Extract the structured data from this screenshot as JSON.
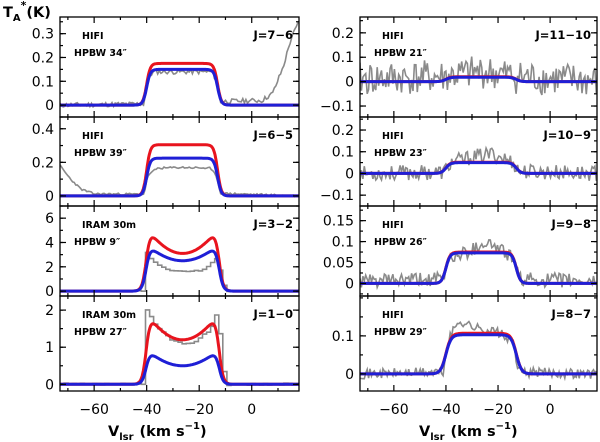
{
  "figure": {
    "y_title": "T",
    "y_title_sub": "A",
    "y_title_sup": "*",
    "y_title_unit": "(K)",
    "x_title_left": "V",
    "x_title_left_sub": "lsr",
    "x_title_left_unit": "(km s",
    "x_title_left_sup": "−1",
    "x_title_left_close": ")",
    "x_title_right": "V",
    "x_title_right_sub": "lsr",
    "x_title_right_unit": "(km s",
    "x_title_right_sup": "−1",
    "x_title_right_close": ")"
  },
  "colors": {
    "observed": "#8a8a8a",
    "model_red": "#e8141e",
    "model_blue": "#1f1fd6",
    "frame": "#000000"
  },
  "chart_data": [
    {
      "type": "line",
      "column": "left",
      "row": 0,
      "telescope": "HIFI",
      "beam": "HPBW 34″",
      "transition": "J=7−6",
      "xlim": [
        -73,
        18
      ],
      "ylim": [
        -0.05,
        0.37
      ],
      "x_ticks": [
        -60,
        -40,
        -20,
        0
      ],
      "y_ticks": [
        0,
        0.1,
        0.2,
        0.3
      ],
      "y_tick_labels": [
        "0",
        "0.1",
        "0.2",
        "0.3"
      ],
      "series": [
        {
          "kind": "model",
          "color": "red",
          "vexp": 13.5,
          "vsys": -26.5,
          "width": 0.7,
          "peak": 0.175,
          "horn": 0,
          "base": 0
        },
        {
          "kind": "model",
          "color": "blue",
          "vexp": 13.5,
          "vsys": -26.5,
          "width": 0.7,
          "peak": 0.15,
          "horn": 0,
          "base": 0
        },
        {
          "kind": "observed",
          "x_step": 0.6,
          "noise": 0.01,
          "seed": 11,
          "profile": [
            [
              -73,
              0
            ],
            [
              -41,
              0.005
            ],
            [
              -39.6,
              0.12
            ],
            [
              -37,
              0.14
            ],
            [
              -30,
              0.14
            ],
            [
              -20,
              0.14
            ],
            [
              -15,
              0.14
            ],
            [
              -13.4,
              0.1
            ],
            [
              -12,
              0.015
            ],
            [
              4,
              0.02
            ],
            [
              8,
              0.05
            ],
            [
              12,
              0.16
            ],
            [
              15,
              0.28
            ],
            [
              18,
              0.35
            ]
          ]
        }
      ]
    },
    {
      "type": "line",
      "column": "left",
      "row": 1,
      "telescope": "HIFI",
      "beam": "HPBW 39″",
      "transition": "J=6−5",
      "xlim": [
        -73,
        18
      ],
      "ylim": [
        -0.06,
        0.47
      ],
      "x_ticks": [
        -60,
        -40,
        -20,
        0
      ],
      "y_ticks": [
        0,
        0.2,
        0.4
      ],
      "y_tick_labels": [
        "0",
        "0.2",
        "0.4"
      ],
      "series": [
        {
          "kind": "model",
          "color": "red",
          "vexp": 13.5,
          "vsys": -26.5,
          "width": 0.7,
          "peak": 0.305,
          "horn": 0,
          "base": 0
        },
        {
          "kind": "model",
          "color": "blue",
          "vexp": 13.5,
          "vsys": -26.5,
          "width": 0.7,
          "peak": 0.225,
          "horn": 0,
          "base": 0
        },
        {
          "kind": "observed",
          "x_step": 0.6,
          "noise": 0.006,
          "seed": 23,
          "profile": [
            [
              -73,
              0.18
            ],
            [
              -69,
              0.1
            ],
            [
              -65,
              0.04
            ],
            [
              -60,
              0.012
            ],
            [
              -41,
              0.01
            ],
            [
              -39.6,
              0.12
            ],
            [
              -36,
              0.165
            ],
            [
              -26,
              0.17
            ],
            [
              -16,
              0.165
            ],
            [
              -13.4,
              0.12
            ],
            [
              -12,
              0.015
            ],
            [
              18,
              0.0
            ]
          ]
        }
      ]
    },
    {
      "type": "line",
      "column": "left",
      "row": 2,
      "telescope": "IRAM 30m",
      "beam": "HPBW 9″",
      "transition": "J=3−2",
      "xlim": [
        -73,
        18
      ],
      "ylim": [
        -0.4,
        7.0
      ],
      "x_ticks": [
        -60,
        -40,
        -20,
        0
      ],
      "y_ticks": [
        0,
        2,
        4,
        6
      ],
      "y_tick_labels": [
        "0",
        "2",
        "4",
        "6"
      ],
      "series": [
        {
          "kind": "model",
          "color": "red",
          "vexp": 13.8,
          "vsys": -26.3,
          "width": 0.8,
          "peak": 5.3,
          "horn": 2.2,
          "base": 0
        },
        {
          "kind": "model",
          "color": "blue",
          "vexp": 13.8,
          "vsys": -26.3,
          "width": 0.8,
          "peak": 3.9,
          "horn": 1.4,
          "base": 0
        },
        {
          "kind": "histogram",
          "x_step": 1.55,
          "noise": 0.05,
          "seed": 31,
          "profile": [
            [
              -73,
              0
            ],
            [
              -41.5,
              0
            ],
            [
              -40.5,
              3.2
            ],
            [
              -38.5,
              2.6
            ],
            [
              -33,
              1.75
            ],
            [
              -26,
              1.6
            ],
            [
              -19,
              1.7
            ],
            [
              -14,
              2.7
            ],
            [
              -12,
              1.3
            ],
            [
              -10.5,
              0
            ],
            [
              18,
              0
            ]
          ]
        }
      ]
    },
    {
      "type": "line",
      "column": "left",
      "row": 3,
      "telescope": "IRAM 30m",
      "beam": "HPBW 27″",
      "transition": "J=1−0",
      "xlim": [
        -73,
        18
      ],
      "ylim": [
        -0.18,
        2.38
      ],
      "x_ticks": [
        -60,
        -40,
        -20,
        0
      ],
      "y_ticks": [
        0,
        1,
        2
      ],
      "y_tick_labels": [
        "0",
        "1",
        "2"
      ],
      "series": [
        {
          "kind": "model",
          "color": "red",
          "vexp": 13.8,
          "vsys": -26.3,
          "width": 0.8,
          "peak": 1.95,
          "horn": 0.75,
          "base": 0
        },
        {
          "kind": "model",
          "color": "blue",
          "vexp": 13.8,
          "vsys": -26.3,
          "width": 0.8,
          "peak": 0.95,
          "horn": 0.45,
          "base": 0
        },
        {
          "kind": "histogram",
          "x_step": 1.55,
          "noise": 0.03,
          "seed": 37,
          "profile": [
            [
              -73,
              0
            ],
            [
              -41.5,
              0
            ],
            [
              -40.5,
              2.0
            ],
            [
              -36,
              1.5
            ],
            [
              -31,
              1.2
            ],
            [
              -26,
              1.05
            ],
            [
              -21,
              1.2
            ],
            [
              -16,
              1.5
            ],
            [
              -13.5,
              2.0
            ],
            [
              -12,
              1.0
            ],
            [
              -10.5,
              0
            ],
            [
              18,
              0
            ]
          ]
        }
      ]
    },
    {
      "type": "line",
      "column": "right",
      "row": 0,
      "telescope": "HIFI",
      "beam": "HPBW 21″",
      "transition": "J=11−10",
      "xlim": [
        -73,
        18
      ],
      "ylim": [
        -0.145,
        0.265
      ],
      "x_ticks": [
        -60,
        -40,
        -20,
        0
      ],
      "y_ticks": [
        -0.1,
        0,
        0.1,
        0.2
      ],
      "y_tick_labels": [
        "−0.1",
        "0",
        "0.1",
        "0.2"
      ],
      "series": [
        {
          "kind": "model",
          "color": "red",
          "vexp": 13.5,
          "vsys": -26.5,
          "width": 0.9,
          "peak": 0.02,
          "horn": 0,
          "base": 0
        },
        {
          "kind": "model",
          "color": "blue",
          "vexp": 13.5,
          "vsys": -26.5,
          "width": 0.9,
          "peak": 0.018,
          "horn": 0,
          "base": 0
        },
        {
          "kind": "observed",
          "x_step": 0.55,
          "noise": 0.07,
          "seed": 41,
          "profile": [
            [
              -73,
              0.01
            ],
            [
              -40,
              0.02
            ],
            [
              -26,
              0.04
            ],
            [
              -13,
              0.02
            ],
            [
              18,
              0
            ]
          ]
        }
      ]
    },
    {
      "type": "line",
      "column": "right",
      "row": 1,
      "telescope": "HIFI",
      "beam": "HPBW 23″",
      "transition": "J=10−9",
      "xlim": [
        -73,
        18
      ],
      "ylim": [
        -0.15,
        0.26
      ],
      "x_ticks": [
        -60,
        -40,
        -20,
        0
      ],
      "y_ticks": [
        -0.1,
        0,
        0.1,
        0.2
      ],
      "y_tick_labels": [
        "−0.1",
        "0",
        "0.1",
        "0.2"
      ],
      "series": [
        {
          "kind": "model",
          "color": "red",
          "vexp": 13.5,
          "vsys": -26.5,
          "width": 0.9,
          "peak": 0.052,
          "horn": 0,
          "base": 0
        },
        {
          "kind": "model",
          "color": "blue",
          "vexp": 13.5,
          "vsys": -26.5,
          "width": 0.9,
          "peak": 0.05,
          "horn": 0,
          "base": 0
        },
        {
          "kind": "observed",
          "x_step": 0.55,
          "noise": 0.035,
          "seed": 53,
          "profile": [
            [
              -73,
              0
            ],
            [
              -41,
              0.005
            ],
            [
              -38,
              0.05
            ],
            [
              -30,
              0.075
            ],
            [
              -22,
              0.09
            ],
            [
              -14,
              0.05
            ],
            [
              -12,
              0.01
            ],
            [
              18,
              0
            ]
          ]
        }
      ]
    },
    {
      "type": "line",
      "column": "right",
      "row": 2,
      "telescope": "HIFI",
      "beam": "HPBW 26″",
      "transition": "J=9−8",
      "xlim": [
        -73,
        18
      ],
      "ylim": [
        -0.03,
        0.185
      ],
      "x_ticks": [
        -60,
        -40,
        -20,
        0
      ],
      "y_ticks": [
        0,
        0.05,
        0.1,
        0.15
      ],
      "y_tick_labels": [
        "0",
        "0.05",
        "0.1",
        "0.15"
      ],
      "series": [
        {
          "kind": "model",
          "color": "red",
          "vexp": 13.5,
          "vsys": -26.5,
          "width": 0.8,
          "peak": 0.075,
          "horn": 0,
          "base": 0
        },
        {
          "kind": "model",
          "color": "blue",
          "vexp": 13.5,
          "vsys": -26.5,
          "width": 0.8,
          "peak": 0.073,
          "horn": 0,
          "base": 0
        },
        {
          "kind": "observed",
          "x_step": 0.55,
          "noise": 0.017,
          "seed": 61,
          "profile": [
            [
              -73,
              0.005
            ],
            [
              -41,
              0.01
            ],
            [
              -39,
              0.06
            ],
            [
              -30,
              0.08
            ],
            [
              -25,
              0.1
            ],
            [
              -20,
              0.085
            ],
            [
              -14,
              0.06
            ],
            [
              -12,
              0.01
            ],
            [
              18,
              0.005
            ]
          ]
        }
      ]
    },
    {
      "type": "line",
      "column": "right",
      "row": 3,
      "telescope": "HIFI",
      "beam": "HPBW 29″",
      "transition": "J=8−7",
      "xlim": [
        -73,
        18
      ],
      "ylim": [
        -0.045,
        0.205
      ],
      "x_ticks": [
        -60,
        -40,
        -20,
        0
      ],
      "y_ticks": [
        0,
        0.1
      ],
      "y_tick_labels": [
        "0",
        "0.1"
      ],
      "series": [
        {
          "kind": "model",
          "color": "red",
          "vexp": 13.5,
          "vsys": -26.5,
          "width": 1.0,
          "peak": 0.107,
          "horn": 0,
          "base": 0
        },
        {
          "kind": "model",
          "color": "blue",
          "vexp": 13.5,
          "vsys": -26.5,
          "width": 1.0,
          "peak": 0.103,
          "horn": 0,
          "base": 0
        },
        {
          "kind": "observed",
          "x_step": 0.55,
          "noise": 0.013,
          "seed": 71,
          "profile": [
            [
              -73,
              0
            ],
            [
              -41,
              0.005
            ],
            [
              -39,
              0.09
            ],
            [
              -35,
              0.14
            ],
            [
              -28,
              0.12
            ],
            [
              -20,
              0.11
            ],
            [
              -14,
              0.08
            ],
            [
              -12,
              0.005
            ],
            [
              18,
              0
            ]
          ]
        }
      ]
    }
  ]
}
